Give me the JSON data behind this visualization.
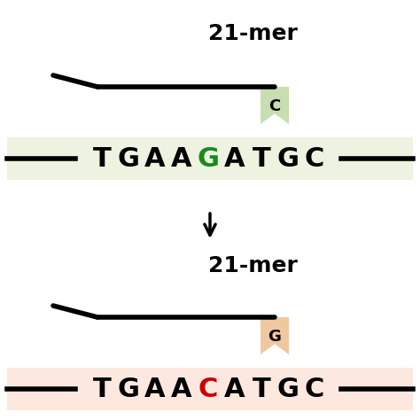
{
  "bg_color": "#ffffff",
  "top_band_color": "#edf3e0",
  "bottom_band_color": "#fde8e0",
  "top_seq_highlight": "G",
  "top_seq_highlight_color": "#1a8a1a",
  "bottom_seq_highlight": "C",
  "bottom_seq_highlight_color": "#cc0000",
  "seq_color": "#000000",
  "label_21mer": "21-mer",
  "label_C": "C",
  "label_G": "G",
  "top_bookmark_color": "#c8deb0",
  "bottom_bookmark_color": "#f0c8a0",
  "arrow_color": "#000000",
  "line_color": "#000000",
  "chars_top": [
    "T",
    "G",
    "A",
    "A",
    "G",
    "A",
    "T",
    "G",
    "C"
  ],
  "chars_bot": [
    "T",
    "G",
    "A",
    "A",
    "C",
    "A",
    "T",
    "G",
    "C"
  ],
  "highlight_idx": 4
}
